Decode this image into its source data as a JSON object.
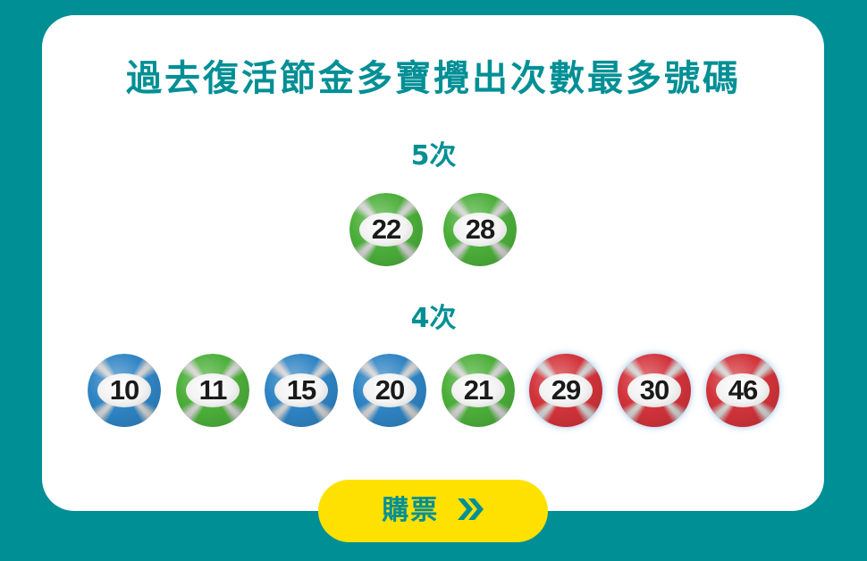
{
  "title": "過去復活節金多寶攪出次數最多號碼",
  "groups": [
    {
      "label": "5次",
      "balls": [
        {
          "number": "22",
          "color": "green"
        },
        {
          "number": "28",
          "color": "green"
        }
      ]
    },
    {
      "label": "4次",
      "balls": [
        {
          "number": "10",
          "color": "blue"
        },
        {
          "number": "11",
          "color": "green"
        },
        {
          "number": "15",
          "color": "blue"
        },
        {
          "number": "20",
          "color": "blue"
        },
        {
          "number": "21",
          "color": "green"
        },
        {
          "number": "29",
          "color": "red"
        },
        {
          "number": "30",
          "color": "red"
        },
        {
          "number": "46",
          "color": "red"
        }
      ]
    }
  ],
  "button": {
    "label": "購票",
    "icon": "double-chevron-right-icon"
  },
  "colors": {
    "background": "#008f95",
    "title": "#008f95",
    "button": "#ffe100",
    "green": "#4caf3a",
    "blue": "#2f84c4",
    "red": "#d2333a"
  }
}
